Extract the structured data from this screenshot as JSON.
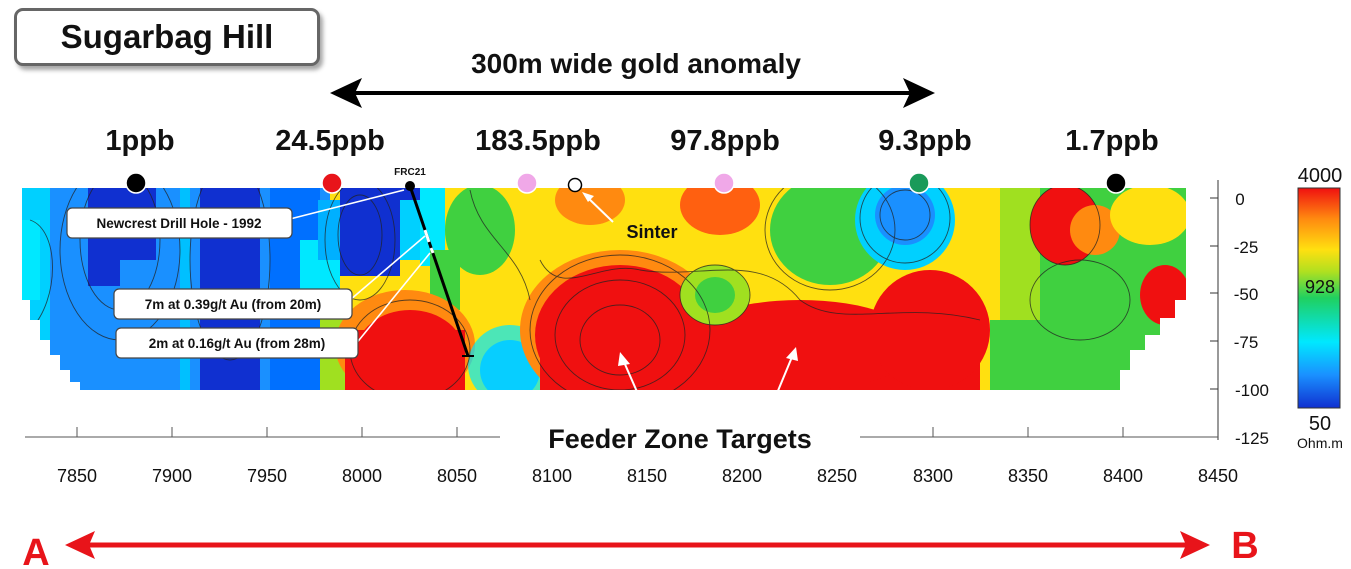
{
  "title": "Sugarbag Hill",
  "anomaly_label": "300m wide gold anomaly",
  "soil_samples": [
    {
      "label": "1ppb",
      "color": "#000000"
    },
    {
      "label": "24.5ppb",
      "color": "#e8141a"
    },
    {
      "label": "183.5ppb",
      "color": "#f0a8e8"
    },
    {
      "label": "97.8ppb",
      "color": "#f0a8e8"
    },
    {
      "label": "9.3ppb",
      "color": "#1a9a5a"
    },
    {
      "label": "1.7ppb",
      "color": "#000000"
    }
  ],
  "drill_hole": {
    "id": "FRC21",
    "callout": "Newcrest Drill Hole - 1992",
    "intercepts": [
      "7m at 0.39g/t Au (from 20m)",
      "2m at 0.16g/t Au (from 28m)"
    ]
  },
  "sinter_label": "Sinter",
  "targets_label": "Feeder Zone Targets",
  "x_ticks": [
    "7850",
    "7900",
    "7950",
    "8000",
    "8050",
    "8100",
    "8150",
    "8200",
    "8250",
    "8300",
    "8350",
    "8400",
    "8450"
  ],
  "depth_ticks": [
    "0",
    "-25",
    "-50",
    "-75",
    "-100",
    "-125"
  ],
  "colorbar": {
    "max": "4000",
    "mid": "928",
    "min": "50",
    "unit": "Ohm.m"
  },
  "section_ends": {
    "start": "A",
    "end": "B"
  },
  "colors": {
    "red": "#e8141a",
    "arrow_red": "#e8141a",
    "anomaly_arrow": "#000000"
  }
}
